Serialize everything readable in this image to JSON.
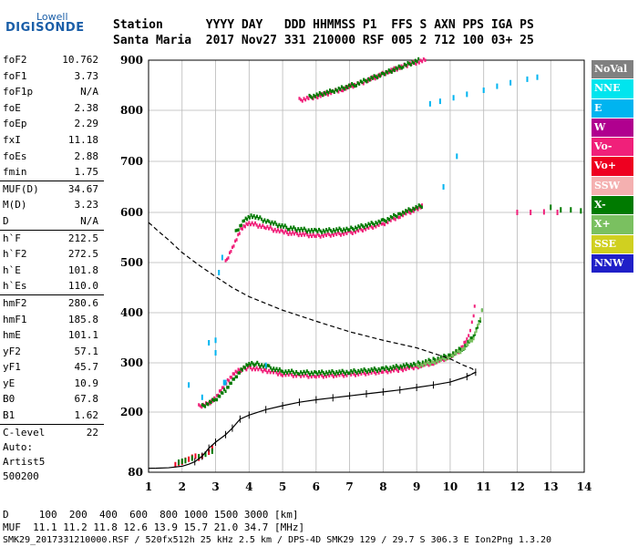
{
  "logo": {
    "line1": "Lowell",
    "line2": "DIGISONDE"
  },
  "header": {
    "line1": "Station      YYYY DAY   DDD HHMMSS P1  FFS S AXN PPS IGA PS",
    "line2": "Santa Maria  2017 Nov27 331 210000 RSF 005 2 712 100 03+ 25"
  },
  "params": [
    {
      "label": "foF2",
      "value": "10.762"
    },
    {
      "label": "foF1",
      "value": "3.73"
    },
    {
      "label": "foF1p",
      "value": "N/A"
    },
    {
      "label": "foE",
      "value": "2.38"
    },
    {
      "label": "foEp",
      "value": "2.29"
    },
    {
      "label": "fxI",
      "value": "11.18"
    },
    {
      "label": "foEs",
      "value": "2.88"
    },
    {
      "label": "fmin",
      "value": "1.75"
    },
    {
      "label": "MUF(D)",
      "value": "34.67",
      "sep": true
    },
    {
      "label": "M(D)",
      "value": "3.23"
    },
    {
      "label": "D",
      "value": "N/A"
    },
    {
      "label": "h`F",
      "value": "212.5",
      "sep": true
    },
    {
      "label": "h`F2",
      "value": "272.5"
    },
    {
      "label": "h`E",
      "value": "101.8"
    },
    {
      "label": "h`Es",
      "value": "110.0"
    },
    {
      "label": "hmF2",
      "value": "280.6",
      "sep": true
    },
    {
      "label": "hmF1",
      "value": "185.8"
    },
    {
      "label": "hmE",
      "value": "101.1"
    },
    {
      "label": "yF2",
      "value": "57.1"
    },
    {
      "label": "yF1",
      "value": "45.7"
    },
    {
      "label": "yE",
      "value": "10.9"
    },
    {
      "label": "B0",
      "value": "67.8"
    },
    {
      "label": "B1",
      "value": "1.62"
    },
    {
      "label": "C-level",
      "value": "22",
      "sep": true
    }
  ],
  "autoscaling": {
    "line1": "Auto:",
    "line2": "Artist5",
    "line3": "500200"
  },
  "legend": [
    {
      "label": "NoVal",
      "color": "#808080"
    },
    {
      "label": "NNE",
      "color": "#00e5ee"
    },
    {
      "label": "E",
      "color": "#00b4f0"
    },
    {
      "label": "W",
      "color": "#b0008f"
    },
    {
      "label": "Vo-",
      "color": "#f0207a"
    },
    {
      "label": "Vo+",
      "color": "#ee0020"
    },
    {
      "label": "SSW",
      "color": "#f4b0b0"
    },
    {
      "label": "X-",
      "color": "#007a00"
    },
    {
      "label": "X+",
      "color": "#7ac060"
    },
    {
      "label": "SSE",
      "color": "#d0d020"
    },
    {
      "label": "NNW",
      "color": "#2020c8"
    }
  ],
  "footer": {
    "line1": "D     100  200  400  600  800 1000 1500 3000 [km]",
    "line2": "MUF  11.1 11.2 11.8 12.6 13.9 15.7 21.0 34.7 [MHz]",
    "line3": "SMK29_2017331210000.RSF / 520fx512h 25 kHz 2.5 km / DPS-4D SMK29 129 / 29.7 S 306.3 E Ion2Png 1.3.20"
  },
  "chart_data": {
    "type": "scatter",
    "xlim": [
      1,
      14
    ],
    "ylim": [
      80,
      900
    ],
    "x_ticks": [
      1,
      2,
      3,
      4,
      5,
      6,
      7,
      8,
      9,
      10,
      11,
      12,
      13,
      14
    ],
    "y_ticks": [
      80,
      200,
      300,
      400,
      500,
      600,
      700,
      800,
      900
    ],
    "grid": true,
    "series": [
      {
        "kind": "traceO",
        "color": "#f0207a",
        "points": [
          [
            2.5,
            211
          ],
          [
            2.8,
            218
          ],
          [
            3.0,
            228
          ],
          [
            3.2,
            248
          ],
          [
            3.4,
            265
          ],
          [
            3.6,
            280
          ],
          [
            3.8,
            287
          ],
          [
            4.0,
            290
          ],
          [
            4.5,
            284
          ],
          [
            5.0,
            277
          ],
          [
            5.5,
            274
          ],
          [
            6.0,
            273
          ],
          [
            7.0,
            276
          ],
          [
            8.0,
            282
          ],
          [
            8.5,
            286
          ],
          [
            9.0,
            292
          ],
          [
            9.5,
            300
          ],
          [
            10.0,
            312
          ],
          [
            10.3,
            325
          ],
          [
            10.5,
            345
          ],
          [
            10.6,
            365
          ],
          [
            10.7,
            390
          ],
          [
            10.76,
            435
          ]
        ]
      },
      {
        "kind": "traceX",
        "color": "#007a00",
        "points": [
          [
            2.6,
            211
          ],
          [
            3.0,
            225
          ],
          [
            3.3,
            245
          ],
          [
            3.6,
            270
          ],
          [
            3.8,
            287
          ],
          [
            4.0,
            296
          ],
          [
            4.2,
            298
          ],
          [
            4.6,
            290
          ],
          [
            5.0,
            282
          ],
          [
            5.5,
            280
          ],
          [
            6.0,
            279
          ],
          [
            7.0,
            281
          ],
          [
            8.0,
            287
          ],
          [
            9.0,
            297
          ],
          [
            9.5,
            305
          ],
          [
            10.0,
            315
          ],
          [
            10.4,
            330
          ],
          [
            10.7,
            352
          ],
          [
            10.9,
            385
          ],
          [
            11.0,
            420
          ]
        ]
      },
      {
        "kind": "traceXlight",
        "color": "#7ac060",
        "points": [
          [
            9.0,
            293
          ],
          [
            9.5,
            301
          ],
          [
            10.0,
            312
          ],
          [
            10.4,
            327
          ],
          [
            10.7,
            350
          ],
          [
            10.9,
            385
          ],
          [
            11.0,
            425
          ]
        ]
      },
      {
        "kind": "secondO",
        "color": "#f0207a",
        "points": [
          [
            3.3,
            500
          ],
          [
            3.5,
            530
          ],
          [
            3.8,
            570
          ],
          [
            4.0,
            578
          ],
          [
            4.5,
            570
          ],
          [
            5.0,
            560
          ],
          [
            6.0,
            553
          ],
          [
            7.0,
            559
          ],
          [
            8.0,
            577
          ],
          [
            8.5,
            593
          ],
          [
            9.0,
            606
          ],
          [
            9.2,
            612
          ]
        ]
      },
      {
        "kind": "secondX",
        "color": "#007a00",
        "points": [
          [
            3.6,
            560
          ],
          [
            3.9,
            588
          ],
          [
            4.1,
            593
          ],
          [
            4.6,
            580
          ],
          [
            5.2,
            568
          ],
          [
            6.0,
            562
          ],
          [
            7.0,
            566
          ],
          [
            8.0,
            582
          ],
          [
            8.5,
            597
          ],
          [
            9.2,
            614
          ]
        ]
      },
      {
        "kind": "thirdO",
        "color": "#f0207a",
        "points": [
          [
            5.5,
            820
          ],
          [
            6.0,
            827
          ],
          [
            6.8,
            842
          ],
          [
            7.5,
            858
          ],
          [
            8.2,
            878
          ],
          [
            8.8,
            892
          ],
          [
            9.3,
            900
          ]
        ]
      },
      {
        "kind": "thirdX",
        "color": "#007a00",
        "points": [
          [
            5.8,
            826
          ],
          [
            6.5,
            838
          ],
          [
            7.2,
            852
          ],
          [
            8.0,
            872
          ],
          [
            8.6,
            888
          ],
          [
            9.1,
            900
          ]
        ]
      },
      {
        "kind": "scatterE",
        "color": "#00b4f0",
        "points": [
          [
            9.4,
            813
          ],
          [
            9.7,
            818
          ],
          [
            10.1,
            825
          ],
          [
            10.5,
            832
          ],
          [
            11.0,
            840
          ],
          [
            11.4,
            848
          ],
          [
            11.8,
            855
          ],
          [
            12.3,
            862
          ],
          [
            12.6,
            866
          ]
        ]
      },
      {
        "kind": "scatterX600",
        "color": "#007a00",
        "points": [
          [
            13.0,
            610
          ],
          [
            13.3,
            605
          ],
          [
            13.6,
            605
          ],
          [
            13.9,
            603
          ]
        ]
      },
      {
        "kind": "scatterO600",
        "color": "#f0207a",
        "points": [
          [
            12.0,
            600
          ],
          [
            12.4,
            600
          ],
          [
            12.8,
            601
          ],
          [
            13.2,
            600
          ]
        ]
      },
      {
        "kind": "scatterLow",
        "color": "#ee0020",
        "points": [
          [
            1.8,
            95
          ],
          [
            1.9,
            98
          ],
          [
            2.0,
            100
          ],
          [
            2.1,
            104
          ],
          [
            2.2,
            106
          ],
          [
            2.3,
            110
          ],
          [
            2.4,
            112
          ],
          [
            2.5,
            108
          ],
          [
            2.6,
            112
          ],
          [
            2.8,
            120
          ],
          [
            2.9,
            128
          ]
        ]
      },
      {
        "kind": "scatterLowX",
        "color": "#007a00",
        "points": [
          [
            1.9,
            100
          ],
          [
            2.0,
            102
          ],
          [
            2.1,
            103
          ],
          [
            2.3,
            108
          ],
          [
            2.5,
            111
          ],
          [
            2.7,
            116
          ],
          [
            2.9,
            122
          ]
        ]
      },
      {
        "kind": "scatterMisc",
        "color": "#00b4f0",
        "points": [
          [
            2.2,
            255
          ],
          [
            2.6,
            230
          ],
          [
            2.8,
            340
          ],
          [
            3.0,
            345
          ],
          [
            3.0,
            320
          ],
          [
            3.1,
            480
          ],
          [
            3.2,
            510
          ],
          [
            3.25,
            260
          ],
          [
            3.3,
            260
          ],
          [
            4.5,
            295
          ],
          [
            9.8,
            650
          ],
          [
            10.2,
            710
          ]
        ]
      }
    ],
    "profile": {
      "points": [
        [
          1.2,
          88
        ],
        [
          1.6,
          89
        ],
        [
          2.0,
          92
        ],
        [
          2.2,
          96
        ],
        [
          2.38,
          101
        ],
        [
          2.6,
          112
        ],
        [
          2.8,
          128
        ],
        [
          3.0,
          140
        ],
        [
          3.3,
          155
        ],
        [
          3.5,
          168
        ],
        [
          3.73,
          186
        ],
        [
          4.0,
          194
        ],
        [
          4.5,
          205
        ],
        [
          5.0,
          213
        ],
        [
          5.5,
          220
        ],
        [
          6.0,
          225
        ],
        [
          6.5,
          229
        ],
        [
          7.0,
          233
        ],
        [
          7.5,
          237
        ],
        [
          8.0,
          241
        ],
        [
          8.5,
          245
        ],
        [
          9.0,
          250
        ],
        [
          9.5,
          255
        ],
        [
          10.0,
          261
        ],
        [
          10.5,
          272
        ],
        [
          10.76,
          281
        ]
      ]
    },
    "dashed": {
      "points": [
        [
          1.0,
          580
        ],
        [
          1.3,
          562
        ],
        [
          1.6,
          545
        ],
        [
          2.0,
          520
        ],
        [
          2.5,
          495
        ],
        [
          3.0,
          472
        ],
        [
          3.5,
          450
        ],
        [
          4.0,
          432
        ],
        [
          5.0,
          405
        ],
        [
          6.0,
          383
        ],
        [
          7.0,
          362
        ],
        [
          8.0,
          345
        ],
        [
          9.0,
          330
        ],
        [
          10.0,
          308
        ],
        [
          10.4,
          295
        ],
        [
          10.66,
          288
        ],
        [
          10.76,
          281
        ],
        [
          10.5,
          273
        ]
      ]
    }
  }
}
